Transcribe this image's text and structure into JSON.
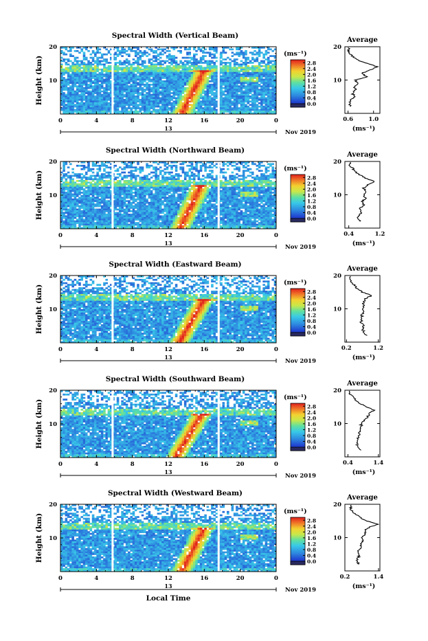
{
  "chart_data": [
    {
      "type": "heatmap",
      "title": "Spectral Width (Vertical Beam)",
      "ylabel": "Height (km)",
      "xlabel": "",
      "xlim": [
        0,
        24
      ],
      "ylim": [
        0,
        20
      ],
      "xticks": [
        "0",
        "4",
        "8",
        "12",
        "16",
        "20",
        "0"
      ],
      "yticks": [
        "20",
        "10"
      ],
      "date_label": "Nov 2019",
      "day_label": "13",
      "colorbar": {
        "unit": "(ms⁻¹)",
        "ticks": [
          "2.8",
          "2.4",
          "2.0",
          "1.6",
          "1.2",
          "0.8",
          "0.4",
          "0.0"
        ],
        "range": [
          0,
          3.0
        ]
      },
      "gaps_hours": [
        5.8,
        17.6
      ],
      "convection_hours": [
        13.5,
        15.8
      ],
      "profile": {
        "title": "Average",
        "xlabel": "(ms⁻¹)",
        "xlim": [
          0.55,
          1.1
        ],
        "xticks": [
          "0.6",
          "1.0"
        ],
        "yticks": [
          "20",
          "10"
        ],
        "heights": [
          2,
          3,
          4,
          5,
          6,
          7,
          8,
          9,
          10,
          11,
          12,
          13,
          14,
          15,
          16,
          17,
          18,
          19,
          20
        ],
        "values": [
          0.65,
          0.62,
          0.64,
          0.7,
          0.67,
          0.72,
          0.7,
          0.75,
          0.72,
          0.9,
          0.8,
          0.95,
          1.05,
          0.9,
          0.75,
          0.68,
          0.62,
          0.6,
          0.62
        ]
      }
    },
    {
      "type": "heatmap",
      "title": "Spectral Width (Northward Beam)",
      "ylabel": "Height (km)",
      "xlabel": "",
      "xlim": [
        0,
        24
      ],
      "ylim": [
        0,
        20
      ],
      "xticks": [
        "0",
        "4",
        "8",
        "12",
        "16",
        "20",
        "0"
      ],
      "yticks": [
        "20",
        "10"
      ],
      "date_label": "Nov 2019",
      "day_label": "13",
      "colorbar": {
        "unit": "(ms⁻¹)",
        "ticks": [
          "2.8",
          "2.4",
          "2.0",
          "1.6",
          "1.2",
          "0.8",
          "0.4",
          "0.0"
        ],
        "range": [
          0,
          3.0
        ]
      },
      "gaps_hours": [
        5.8,
        17.6
      ],
      "convection_hours": [
        13.3,
        15.5
      ],
      "profile": {
        "title": "Average",
        "xlabel": "(ms⁻¹)",
        "xlim": [
          0.3,
          1.2
        ],
        "xticks": [
          "0.4",
          "1.2"
        ],
        "yticks": [
          "20",
          "10"
        ],
        "heights": [
          2,
          3,
          4,
          5,
          6,
          7,
          8,
          9,
          10,
          11,
          12,
          13,
          14,
          15,
          16,
          17,
          18,
          19,
          20
        ],
        "values": [
          0.7,
          0.62,
          0.68,
          0.72,
          0.7,
          0.78,
          0.75,
          0.82,
          0.8,
          0.85,
          0.78,
          0.9,
          1.05,
          0.82,
          0.68,
          0.55,
          0.5,
          0.42,
          0.45
        ]
      }
    },
    {
      "type": "heatmap",
      "title": "Spectral Width (Eastward Beam)",
      "ylabel": "Height (km)",
      "xlabel": "",
      "xlim": [
        0,
        24
      ],
      "ylim": [
        0,
        20
      ],
      "xticks": [
        "0",
        "4",
        "8",
        "12",
        "16",
        "20",
        "0"
      ],
      "yticks": [
        "20",
        "10"
      ],
      "date_label": "Nov 2019",
      "day_label": "13",
      "colorbar": {
        "unit": "(ms⁻¹)",
        "ticks": [
          "2.8",
          "2.4",
          "2.0",
          "1.6",
          "1.2",
          "0.8",
          "0.4",
          "0.0"
        ],
        "range": [
          0,
          3.0
        ]
      },
      "gaps_hours": [
        5.8,
        17.6
      ],
      "convection_hours": [
        13.2,
        15.8
      ],
      "profile": {
        "title": "Average",
        "xlabel": "(ms⁻¹)",
        "xlim": [
          0.15,
          1.25
        ],
        "xticks": [
          "0.2",
          "1.2"
        ],
        "yticks": [
          "20",
          "10"
        ],
        "heights": [
          2,
          3,
          4,
          5,
          6,
          7,
          8,
          9,
          10,
          11,
          12,
          13,
          14,
          15,
          16,
          17,
          18,
          19,
          20
        ],
        "values": [
          0.85,
          0.75,
          0.7,
          0.72,
          0.65,
          0.7,
          0.68,
          0.72,
          0.7,
          0.75,
          0.72,
          0.8,
          0.98,
          0.7,
          0.55,
          0.45,
          0.35,
          0.3,
          0.35
        ]
      }
    },
    {
      "type": "heatmap",
      "title": "Spectral Width (Southward Beam)",
      "ylabel": "Height (km)",
      "xlabel": "",
      "xlim": [
        0,
        24
      ],
      "ylim": [
        0,
        20
      ],
      "xticks": [
        "0",
        "4",
        "8",
        "12",
        "16",
        "20",
        "0"
      ],
      "yticks": [
        "20",
        "10"
      ],
      "date_label": "Nov 2019",
      "day_label": "13",
      "colorbar": {
        "unit": "(ms⁻¹)",
        "ticks": [
          "2.8",
          "2.4",
          "2.0",
          "1.6",
          "1.2",
          "0.8",
          "0.4",
          "0.0"
        ],
        "range": [
          0,
          3.0
        ]
      },
      "gaps_hours": [
        5.8,
        17.6
      ],
      "convection_hours": [
        12.8,
        15.5
      ],
      "profile": {
        "title": "Average",
        "xlabel": "(ms⁻¹)",
        "xlim": [
          0.3,
          1.45
        ],
        "xticks": [
          "0.4",
          "1.4"
        ],
        "yticks": [
          "20",
          "10"
        ],
        "heights": [
          2,
          3,
          4,
          5,
          6,
          7,
          8,
          9,
          10,
          11,
          12,
          13,
          14,
          15,
          16,
          17,
          18,
          19,
          20
        ],
        "values": [
          0.8,
          0.72,
          0.7,
          0.75,
          0.72,
          0.78,
          0.8,
          0.85,
          0.82,
          0.95,
          1.05,
          1.1,
          1.25,
          1.0,
          0.8,
          0.65,
          0.55,
          0.45,
          0.5
        ]
      }
    },
    {
      "type": "heatmap",
      "title": "Spectral Width (Westward Beam)",
      "ylabel": "Height (km)",
      "xlabel": "Local Time",
      "xlim": [
        0,
        24
      ],
      "ylim": [
        0,
        20
      ],
      "xticks": [
        "0",
        "4",
        "8",
        "12",
        "16",
        "20",
        "0"
      ],
      "yticks": [
        "20",
        "10"
      ],
      "date_label": "Nov 2019",
      "day_label": "13",
      "colorbar": {
        "unit": "(ms⁻¹)",
        "ticks": [
          "2.8",
          "2.4",
          "2.0",
          "1.6",
          "1.2",
          "0.8",
          "0.4",
          "0.0"
        ],
        "range": [
          0,
          3.0
        ]
      },
      "gaps_hours": [
        5.8,
        17.6
      ],
      "convection_hours": [
        13.5,
        15.8
      ],
      "profile": {
        "title": "Average",
        "xlabel": "(ms⁻¹)",
        "xlim": [
          0.2,
          1.45
        ],
        "xticks": [
          "0.2",
          "1.4"
        ],
        "yticks": [
          "20",
          "10"
        ],
        "heights": [
          2,
          3,
          4,
          5,
          6,
          7,
          8,
          9,
          10,
          11,
          12,
          13,
          14,
          15,
          16,
          17,
          18,
          19,
          20
        ],
        "values": [
          0.7,
          0.62,
          0.68,
          0.72,
          0.68,
          0.75,
          0.78,
          0.85,
          0.82,
          0.95,
          0.9,
          1.05,
          1.35,
          1.0,
          0.75,
          0.6,
          0.45,
          0.4,
          0.45
        ]
      }
    }
  ]
}
